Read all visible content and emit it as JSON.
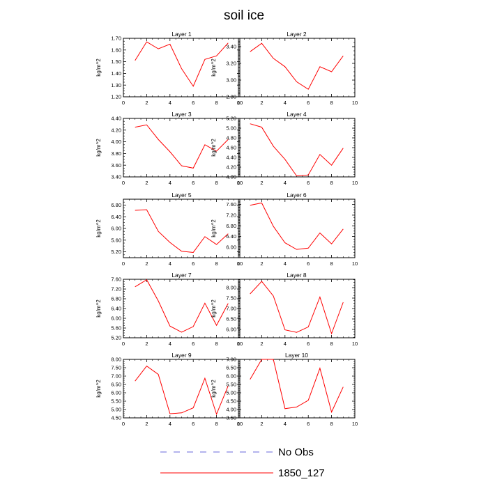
{
  "title": "soil ice",
  "legend": [
    {
      "label": "No Obs",
      "color": "#3a3ad0",
      "dash": true
    },
    {
      "label": "1850_127",
      "color": "#ff0000",
      "dash": false
    }
  ],
  "chart_data": [
    {
      "type": "line",
      "title": "Layer 1",
      "ylabel": "kg/m^2",
      "xlim": [
        0,
        10
      ],
      "ylim": [
        1.2,
        1.7
      ],
      "xticks": [
        0,
        2,
        4,
        6,
        8,
        10
      ],
      "yticks": [
        "1.20",
        "1.30",
        "1.40",
        "1.50",
        "1.60",
        "1.70"
      ],
      "x": [
        1,
        2,
        3,
        4,
        5,
        6,
        7,
        8,
        9
      ],
      "series": [
        {
          "name": "1850_127",
          "color": "#ff0000",
          "values": [
            1.51,
            1.67,
            1.61,
            1.65,
            1.44,
            1.29,
            1.52,
            1.55,
            1.66
          ]
        }
      ]
    },
    {
      "type": "line",
      "title": "Layer 2",
      "ylabel": "",
      "xlim": [
        0,
        10
      ],
      "ylim": [
        2.8,
        3.5
      ],
      "xticks": [
        0,
        2,
        4,
        6,
        8,
        10
      ],
      "yticks": [
        "2.80",
        "3.00",
        "3.20",
        "3.40"
      ],
      "x": [
        1,
        2,
        3,
        4,
        5,
        6,
        7,
        8,
        9
      ],
      "series": [
        {
          "name": "1850_127",
          "color": "#ff0000",
          "values": [
            3.34,
            3.44,
            3.26,
            3.16,
            2.98,
            2.89,
            3.16,
            3.1,
            3.29
          ]
        }
      ]
    },
    {
      "type": "line",
      "title": "Layer 3",
      "ylabel": "kg/m^2",
      "xlim": [
        0,
        10
      ],
      "ylim": [
        3.4,
        4.4
      ],
      "xticks": [
        0,
        2,
        4,
        6,
        8,
        10
      ],
      "yticks": [
        "3.40",
        "3.60",
        "3.80",
        "4.00",
        "4.20",
        "4.40"
      ],
      "x": [
        1,
        2,
        3,
        4,
        5,
        6,
        7,
        8,
        9
      ],
      "series": [
        {
          "name": "1850_127",
          "color": "#ff0000",
          "values": [
            4.25,
            4.29,
            4.04,
            3.83,
            3.59,
            3.55,
            3.95,
            3.84,
            4.04
          ]
        }
      ]
    },
    {
      "type": "line",
      "title": "Layer 4",
      "ylabel": "",
      "xlim": [
        0,
        10
      ],
      "ylim": [
        4.0,
        5.2
      ],
      "xticks": [
        0,
        2,
        4,
        6,
        8,
        10
      ],
      "yticks": [
        "4.00",
        "4.20",
        "4.40",
        "4.60",
        "4.80",
        "5.00",
        "5.20"
      ],
      "x": [
        1,
        2,
        3,
        4,
        5,
        6,
        7,
        8,
        9
      ],
      "series": [
        {
          "name": "1850_127",
          "color": "#ff0000",
          "values": [
            5.09,
            5.02,
            4.63,
            4.36,
            4.02,
            4.04,
            4.46,
            4.24,
            4.59
          ]
        }
      ]
    },
    {
      "type": "line",
      "title": "Layer 5",
      "ylabel": "kg/m^2",
      "xlim": [
        0,
        10
      ],
      "ylim": [
        5.0,
        7.0
      ],
      "xticks": [
        0,
        2,
        4,
        6,
        8,
        10
      ],
      "yticks": [
        "5.20",
        "5.60",
        "6.00",
        "6.40",
        "6.80"
      ],
      "x": [
        1,
        2,
        3,
        4,
        5,
        6,
        7,
        8,
        9
      ],
      "series": [
        {
          "name": "1850_127",
          "color": "#ff0000",
          "values": [
            6.62,
            6.64,
            5.9,
            5.52,
            5.22,
            5.18,
            5.72,
            5.45,
            5.82
          ]
        }
      ]
    },
    {
      "type": "line",
      "title": "Layer 6",
      "ylabel": "",
      "xlim": [
        0,
        10
      ],
      "ylim": [
        5.6,
        7.8
      ],
      "xticks": [
        0,
        2,
        4,
        6,
        8,
        10
      ],
      "yticks": [
        "6.00",
        "6.40",
        "6.80",
        "7.20",
        "7.60"
      ],
      "x": [
        1,
        2,
        3,
        4,
        5,
        6,
        7,
        8,
        9
      ],
      "series": [
        {
          "name": "1850_127",
          "color": "#ff0000",
          "values": [
            7.57,
            7.66,
            6.78,
            6.16,
            5.91,
            5.96,
            6.53,
            6.12,
            6.68
          ]
        }
      ]
    },
    {
      "type": "line",
      "title": "Layer 7",
      "ylabel": "kg/m^2",
      "xlim": [
        0,
        10
      ],
      "ylim": [
        5.2,
        7.6
      ],
      "xticks": [
        0,
        2,
        4,
        6,
        8,
        10
      ],
      "yticks": [
        "5.20",
        "5.60",
        "6.00",
        "6.40",
        "6.80",
        "7.20",
        "7.60"
      ],
      "x": [
        1,
        2,
        3,
        4,
        5,
        6,
        7,
        8,
        9
      ],
      "series": [
        {
          "name": "1850_127",
          "color": "#ff0000",
          "values": [
            7.29,
            7.58,
            6.71,
            5.68,
            5.43,
            5.66,
            6.62,
            5.71,
            6.61
          ]
        }
      ]
    },
    {
      "type": "line",
      "title": "Layer 8",
      "ylabel": "",
      "xlim": [
        0,
        10
      ],
      "ylim": [
        5.6,
        8.4
      ],
      "xticks": [
        0,
        2,
        4,
        6,
        8,
        10
      ],
      "yticks": [
        "6.00",
        "6.50",
        "7.00",
        "7.50",
        "8.00"
      ],
      "x": [
        1,
        2,
        3,
        4,
        5,
        6,
        7,
        8,
        9
      ],
      "series": [
        {
          "name": "1850_127",
          "color": "#ff0000",
          "values": [
            7.7,
            8.3,
            7.6,
            5.98,
            5.86,
            6.12,
            7.55,
            5.8,
            7.3
          ]
        }
      ]
    },
    {
      "type": "line",
      "title": "Layer 9",
      "ylabel": "kg/m^2",
      "xlim": [
        0,
        10
      ],
      "ylim": [
        4.5,
        8.0
      ],
      "xticks": [
        0,
        2,
        4,
        6,
        8,
        10
      ],
      "yticks": [
        "4.50",
        "5.00",
        "5.50",
        "6.00",
        "6.50",
        "7.00",
        "7.50",
        "8.00"
      ],
      "x": [
        1,
        2,
        3,
        4,
        5,
        6,
        7,
        8,
        9
      ],
      "series": [
        {
          "name": "1850_127",
          "color": "#ff0000",
          "values": [
            6.7,
            7.6,
            7.1,
            4.75,
            4.8,
            5.1,
            6.87,
            4.72,
            6.42
          ]
        }
      ]
    },
    {
      "type": "line",
      "title": "Layer 10",
      "ylabel": "",
      "xlim": [
        0,
        10
      ],
      "ylim": [
        3.5,
        7.0
      ],
      "xticks": [
        0,
        2,
        4,
        6,
        8,
        10
      ],
      "yticks": [
        "3.50",
        "4.00",
        "4.50",
        "5.00",
        "5.50",
        "6.00",
        "6.50",
        "7.00"
      ],
      "x": [
        1,
        2,
        3,
        4,
        5,
        6,
        7,
        8,
        9
      ],
      "series": [
        {
          "name": "1850_127",
          "color": "#ff0000",
          "values": [
            5.8,
            7.0,
            7.0,
            4.05,
            4.15,
            4.55,
            6.47,
            3.85,
            5.35
          ]
        }
      ]
    }
  ]
}
